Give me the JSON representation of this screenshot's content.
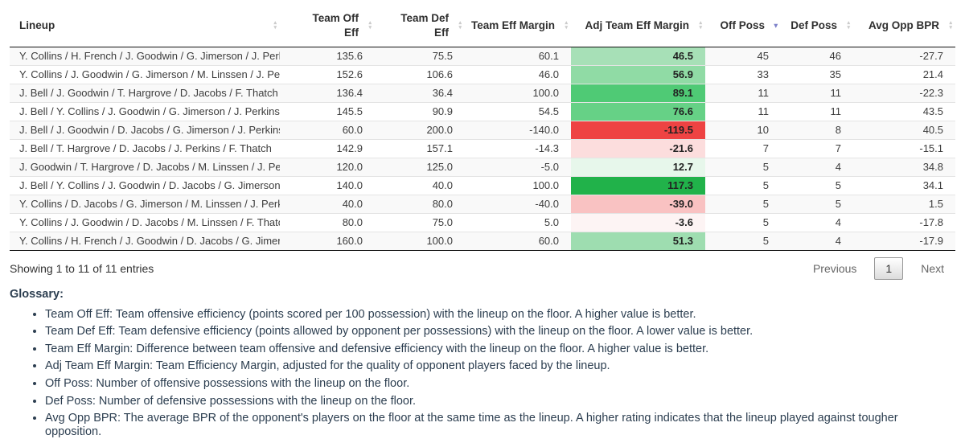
{
  "table": {
    "columns": [
      {
        "key": "lineup",
        "label": "Lineup",
        "sort": "none"
      },
      {
        "key": "off_eff",
        "label": "Team Off Eff",
        "sort": "none"
      },
      {
        "key": "def_eff",
        "label": "Team Def Eff",
        "sort": "none"
      },
      {
        "key": "margin",
        "label": "Team Eff Margin",
        "sort": "none"
      },
      {
        "key": "adj_margin",
        "label": "Adj Team Eff Margin",
        "sort": "none"
      },
      {
        "key": "off_poss",
        "label": "Off Poss",
        "sort": "desc"
      },
      {
        "key": "def_poss",
        "label": "Def Poss",
        "sort": "none"
      },
      {
        "key": "avg_opp_bpr",
        "label": "Avg Opp BPR",
        "sort": "none"
      }
    ],
    "rows": [
      {
        "lineup": "Y. Collins / H. French / J. Goodwin / G. Jimerson / J. Perkins",
        "off_eff": "135.6",
        "def_eff": "75.5",
        "margin": "60.1",
        "adj_margin": "46.5",
        "adj_color": "#a7e0b7",
        "off_poss": "45",
        "def_poss": "46",
        "avg_opp_bpr": "-27.7"
      },
      {
        "lineup": "Y. Collins / J. Goodwin / G. Jimerson / M. Linssen / J. Perkins",
        "off_eff": "152.6",
        "def_eff": "106.6",
        "margin": "46.0",
        "adj_margin": "56.9",
        "adj_color": "#90dba5",
        "off_poss": "33",
        "def_poss": "35",
        "avg_opp_bpr": "21.4"
      },
      {
        "lineup": "J. Bell / J. Goodwin / T. Hargrove / D. Jacobs / F. Thatch",
        "off_eff": "136.4",
        "def_eff": "36.4",
        "margin": "100.0",
        "adj_margin": "89.1",
        "adj_color": "#4fca75",
        "off_poss": "11",
        "def_poss": "11",
        "avg_opp_bpr": "-22.3"
      },
      {
        "lineup": "J. Bell / Y. Collins / J. Goodwin / G. Jimerson / J. Perkins",
        "off_eff": "145.5",
        "def_eff": "90.9",
        "margin": "54.5",
        "adj_margin": "76.6",
        "adj_color": "#66d186",
        "off_poss": "11",
        "def_poss": "11",
        "avg_opp_bpr": "43.5"
      },
      {
        "lineup": "J. Bell / J. Goodwin / D. Jacobs / G. Jimerson / J. Perkins",
        "off_eff": "60.0",
        "def_eff": "200.0",
        "margin": "-140.0",
        "adj_margin": "-119.5",
        "adj_color": "#ee4343",
        "off_poss": "10",
        "def_poss": "8",
        "avg_opp_bpr": "40.5"
      },
      {
        "lineup": "J. Bell / T. Hargrove / D. Jacobs / J. Perkins / F. Thatch",
        "off_eff": "142.9",
        "def_eff": "157.1",
        "margin": "-14.3",
        "adj_margin": "-21.6",
        "adj_color": "#fcdddd",
        "off_poss": "7",
        "def_poss": "7",
        "avg_opp_bpr": "-15.1"
      },
      {
        "lineup": "J. Goodwin / T. Hargrove / D. Jacobs / M. Linssen / J. Perkins",
        "off_eff": "120.0",
        "def_eff": "125.0",
        "margin": "-5.0",
        "adj_margin": "12.7",
        "adj_color": "#e7f7eb",
        "off_poss": "5",
        "def_poss": "4",
        "avg_opp_bpr": "34.8"
      },
      {
        "lineup": "J. Bell / Y. Collins / J. Goodwin / D. Jacobs / G. Jimerson",
        "off_eff": "140.0",
        "def_eff": "40.0",
        "margin": "100.0",
        "adj_margin": "117.3",
        "adj_color": "#21b24a",
        "off_poss": "5",
        "def_poss": "5",
        "avg_opp_bpr": "34.1"
      },
      {
        "lineup": "Y. Collins / D. Jacobs / G. Jimerson / M. Linssen / J. Perkins",
        "off_eff": "40.0",
        "def_eff": "80.0",
        "margin": "-40.0",
        "adj_margin": "-39.0",
        "adj_color": "#f9c2c2",
        "off_poss": "5",
        "def_poss": "5",
        "avg_opp_bpr": "1.5"
      },
      {
        "lineup": "Y. Collins / J. Goodwin / D. Jacobs / M. Linssen / F. Thatch",
        "off_eff": "80.0",
        "def_eff": "75.0",
        "margin": "5.0",
        "adj_margin": "-3.6",
        "adj_color": "#fdf4f4",
        "off_poss": "5",
        "def_poss": "4",
        "avg_opp_bpr": "-17.8"
      },
      {
        "lineup": "Y. Collins / H. French / J. Goodwin / D. Jacobs / G. Jimerson",
        "off_eff": "160.0",
        "def_eff": "100.0",
        "margin": "60.0",
        "adj_margin": "51.3",
        "adj_color": "#9eddb0",
        "off_poss": "5",
        "def_poss": "4",
        "avg_opp_bpr": "-17.9"
      }
    ]
  },
  "footer": {
    "showing": "Showing 1 to 11 of 11 entries",
    "previous": "Previous",
    "page": "1",
    "next": "Next"
  },
  "glossary": {
    "heading": "Glossary:",
    "items": [
      "Team Off Eff: Team offensive efficiency (points scored per 100 possession) with the lineup on the floor. A higher value is better.",
      "Team Def Eff: Team defensive efficiency (points allowed by opponent per possessions) with the lineup on the floor. A lower value is better.",
      "Team Eff Margin: Difference between team offensive and defensive efficiency with the lineup on the floor. A higher value is better.",
      "Adj Team Eff Margin: Team Efficiency Margin, adjusted for the quality of opponent players faced by the lineup.",
      "Off Poss: Number of offensive possessions with the lineup on the floor.",
      "Def Poss: Number of defensive possessions with the lineup on the floor.",
      "Avg Opp BPR: The average BPR of the opponent's players on the floor at the same time as the lineup. A higher rating indicates that the lineup played against tougher opposition."
    ]
  },
  "colors": {
    "accent_sort": "#7e82ca",
    "positive_max": "#21b24a",
    "negative_max": "#ee4343",
    "stripe": "#f9f9f9"
  }
}
